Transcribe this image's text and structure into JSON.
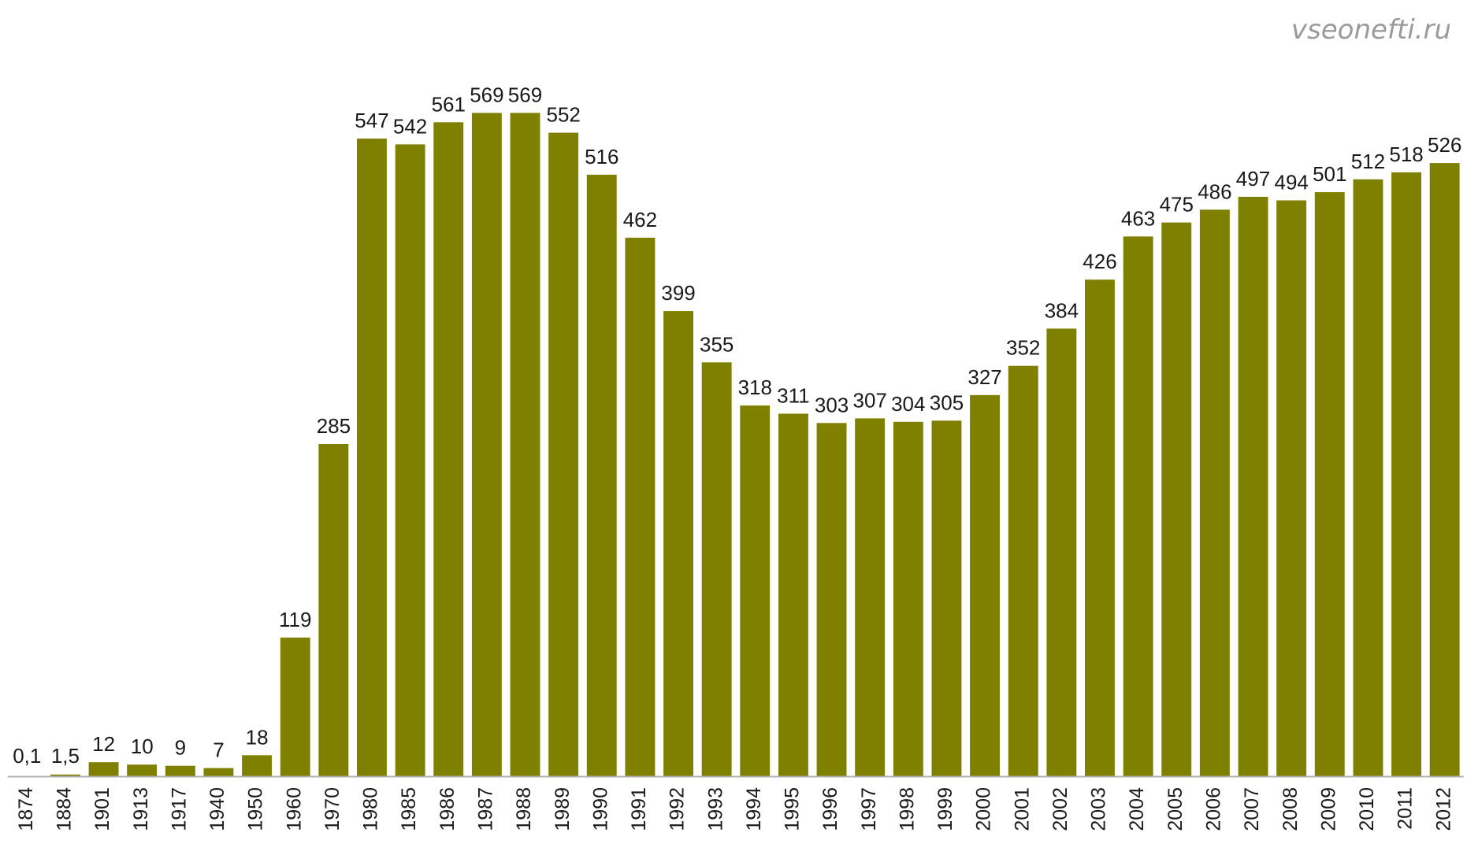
{
  "watermark": "vseonefti.ru",
  "colors": {
    "bar": "#7f7f00",
    "axis": "#b0b0b0",
    "label": "#1a1a1a"
  },
  "chart_data": {
    "type": "bar",
    "title": "",
    "xlabel": "",
    "ylabel": "",
    "ylim": [
      0,
      600
    ],
    "grid": false,
    "legend": "none",
    "categories": [
      "1874",
      "1884",
      "1901",
      "1913",
      "1917",
      "1940",
      "1950",
      "1960",
      "1970",
      "1980",
      "1985",
      "1986",
      "1987",
      "1988",
      "1989",
      "1990",
      "1991",
      "1992",
      "1993",
      "1994",
      "1995",
      "1996",
      "1997",
      "1998",
      "1999",
      "2000",
      "2001",
      "2002",
      "2003",
      "2004",
      "2005",
      "2006",
      "2007",
      "2008",
      "2009",
      "2010",
      "2011",
      "2012"
    ],
    "values": [
      0.1,
      1.5,
      12,
      10,
      9,
      7,
      18,
      119,
      285,
      547,
      542,
      561,
      569,
      569,
      552,
      516,
      462,
      399,
      355,
      318,
      311,
      303,
      307,
      304,
      305,
      327,
      352,
      384,
      426,
      463,
      475,
      486,
      497,
      494,
      501,
      512,
      518,
      526
    ],
    "value_labels": [
      "0,1",
      "1,5",
      "12",
      "10",
      "9",
      "7",
      "18",
      "119",
      "285",
      "547",
      "542",
      "561",
      "569",
      "569",
      "552",
      "516",
      "462",
      "399",
      "355",
      "318",
      "311",
      "303",
      "307",
      "304",
      "305",
      "327",
      "352",
      "384",
      "426",
      "463",
      "475",
      "486",
      "497",
      "494",
      "501",
      "512",
      "518",
      "526"
    ]
  }
}
